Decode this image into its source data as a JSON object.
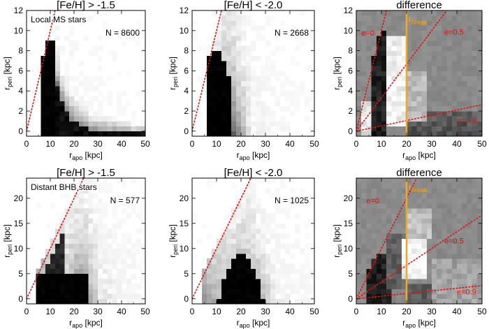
{
  "figure": {
    "panels": [
      {
        "id": "p1",
        "title": "[Fe/H] > -1.5",
        "inset_label": "Local MS stars",
        "count_label": "N = 8600",
        "ylabel_main": "r",
        "ylabel_sub": "peri",
        "ylabel_unit": " [kpc]",
        "xlabel_main": "r",
        "xlabel_sub": "apo",
        "xlabel_unit": " [kpc]",
        "x_ticks": [
          "0",
          "10",
          "20",
          "30",
          "40",
          "50"
        ],
        "y_ticks": [
          "0",
          "2",
          "4",
          "6",
          "8",
          "10",
          "12"
        ]
      },
      {
        "id": "p2",
        "title": "[Fe/H] < -2.0",
        "inset_label": "",
        "count_label": "N = 2668",
        "ylabel_main": "r",
        "ylabel_sub": "peri",
        "ylabel_unit": " [kpc]",
        "xlabel_main": "r",
        "xlabel_sub": "apo",
        "xlabel_unit": " [kpc]",
        "x_ticks": [
          "0",
          "10",
          "20",
          "30",
          "40",
          "50"
        ],
        "y_ticks": [
          "0",
          "2",
          "4",
          "6",
          "8",
          "10",
          "12"
        ]
      },
      {
        "id": "p3",
        "title": "difference",
        "inset_label": "",
        "count_label": "",
        "ylabel_main": "r",
        "ylabel_sub": "peri",
        "ylabel_unit": " [kpc]",
        "xlabel_main": "r",
        "xlabel_sub": "apo",
        "xlabel_unit": " [kpc]",
        "x_ticks": [
          "0",
          "10",
          "20",
          "30",
          "40",
          "50"
        ],
        "y_ticks": [
          "0",
          "2",
          "4",
          "6",
          "8",
          "10",
          "12"
        ],
        "break_label_main": "r",
        "break_label_sub": "break",
        "e_labels": [
          "e=0",
          "e=0.5",
          "e=0.9"
        ]
      },
      {
        "id": "p4",
        "title": "[Fe/H] > -1.5",
        "inset_label": "Distant BHB stars",
        "count_label": "N = 577",
        "ylabel_main": "r",
        "ylabel_sub": "peri",
        "ylabel_unit": " [kpc]",
        "xlabel_main": "r",
        "xlabel_sub": "apo",
        "xlabel_unit": " [kpc]",
        "x_ticks": [
          "0",
          "10",
          "20",
          "30",
          "40",
          "50"
        ],
        "y_ticks": [
          "0",
          "5",
          "10",
          "15",
          "20"
        ]
      },
      {
        "id": "p5",
        "title": "[Fe/H] < -2.0",
        "inset_label": "",
        "count_label": "N = 1025",
        "ylabel_main": "r",
        "ylabel_sub": "peri",
        "ylabel_unit": " [kpc]",
        "xlabel_main": "r",
        "xlabel_sub": "apo",
        "xlabel_unit": " [kpc]",
        "x_ticks": [
          "0",
          "10",
          "20",
          "30",
          "40",
          "50"
        ],
        "y_ticks": [
          "0",
          "5",
          "10",
          "15",
          "20"
        ]
      },
      {
        "id": "p6",
        "title": "difference",
        "inset_label": "",
        "count_label": "",
        "ylabel_main": "r",
        "ylabel_sub": "peri",
        "ylabel_unit": " [kpc]",
        "xlabel_main": "r",
        "xlabel_sub": "apo",
        "xlabel_unit": " [kpc]",
        "x_ticks": [
          "0",
          "10",
          "20",
          "30",
          "40",
          "50"
        ],
        "y_ticks": [
          "0",
          "5",
          "10",
          "15",
          "20"
        ],
        "break_label_main": "r",
        "break_label_sub": "break",
        "e_labels": [
          "e=0",
          "e=0.5",
          "e=0.9"
        ]
      }
    ]
  },
  "chart_data": [
    {
      "type": "heatmap",
      "title": "[Fe/H] > -1.5",
      "xlabel": "r_apo [kpc]",
      "ylabel": "r_peri [kpc]",
      "xlim": [
        0,
        50
      ],
      "ylim": [
        -0.5,
        12
      ],
      "annotation": "Local MS stars",
      "N": 8600,
      "colormap": "density: black = high, white = low",
      "density_shape": "black wedge at r_apo 6-12 kpc below r_peri ~9, tail to r_apo ~20 kpc at low r_peri",
      "reference_lines": [
        {
          "label": "e=0",
          "slope": 1,
          "style": "red dotted"
        }
      ]
    },
    {
      "type": "heatmap",
      "title": "[Fe/H] < -2.0",
      "xlabel": "r_apo [kpc]",
      "ylabel": "r_peri [kpc]",
      "xlim": [
        0,
        50
      ],
      "ylim": [
        -0.5,
        12
      ],
      "N": 2668,
      "colormap": "density: black = high, white = low",
      "density_shape": "black wedge at r_apo 6-14 kpc below r_peri ~8, broader grey halo to r_apo ~25 kpc",
      "reference_lines": [
        {
          "label": "e=0",
          "slope": 1,
          "style": "red dotted"
        }
      ]
    },
    {
      "type": "heatmap",
      "title": "difference",
      "xlabel": "r_apo [kpc]",
      "ylabel": "r_peri [kpc]",
      "xlim": [
        0,
        50
      ],
      "ylim": [
        -0.5,
        12
      ],
      "colormap": "difference: black / white relative to grey zero",
      "reference_lines": [
        {
          "label": "e=0",
          "slope": 1.0,
          "style": "red dotted"
        },
        {
          "label": "e=0.5",
          "slope": 0.3333,
          "style": "red dotted"
        },
        {
          "label": "e=0.9",
          "slope": 0.0526,
          "style": "red dotted"
        },
        {
          "label": "r_break",
          "x": 20,
          "style": "orange vertical"
        }
      ]
    },
    {
      "type": "heatmap",
      "title": "[Fe/H] > -1.5",
      "xlabel": "r_apo [kpc]",
      "ylabel": "r_peri [kpc]",
      "xlim": [
        0,
        50
      ],
      "ylim": [
        -1,
        24
      ],
      "annotation": "Distant BHB stars",
      "N": 577,
      "colormap": "density: black = high, white = low",
      "density_shape": "black mass at r_apo 6-26 kpc below r_peri ~6, extending up to r_peri ~13 near the e=0 line",
      "reference_lines": [
        {
          "label": "e=0",
          "slope": 1,
          "style": "red dotted"
        }
      ]
    },
    {
      "type": "heatmap",
      "title": "[Fe/H] < -2.0",
      "xlabel": "r_apo [kpc]",
      "ylabel": "r_peri [kpc]",
      "xlim": [
        0,
        50
      ],
      "ylim": [
        -1,
        24
      ],
      "N": 1025,
      "colormap": "density: black = high, white = low",
      "density_shape": "black hump centred near r_apo ~20 kpc below r_peri ~9, grey halo to r_peri ~20",
      "reference_lines": [
        {
          "label": "e=0",
          "slope": 1,
          "style": "red dotted"
        }
      ]
    },
    {
      "type": "heatmap",
      "title": "difference",
      "xlabel": "r_apo [kpc]",
      "ylabel": "r_peri [kpc]",
      "xlim": [
        0,
        50
      ],
      "ylim": [
        -1,
        24
      ],
      "colormap": "difference: black / white relative to grey zero",
      "reference_lines": [
        {
          "label": "e=0",
          "slope": 1.0,
          "style": "red dotted"
        },
        {
          "label": "e=0.5",
          "slope": 0.3333,
          "style": "red dotted"
        },
        {
          "label": "e=0.9",
          "slope": 0.0526,
          "style": "red dotted"
        },
        {
          "label": "r_break",
          "x": 20,
          "style": "orange vertical"
        }
      ]
    }
  ]
}
